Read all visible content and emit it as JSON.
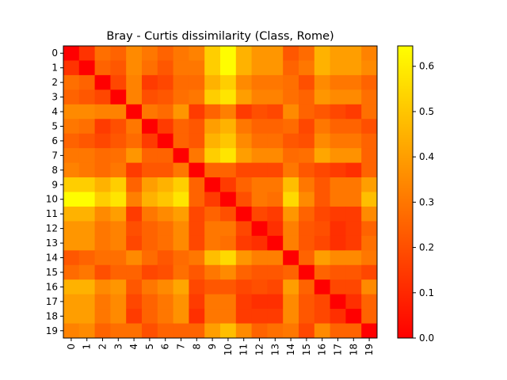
{
  "chart_data": {
    "type": "heatmap",
    "title": "Bray - Curtis dissimilarity (Class, Rome)",
    "xlabel": "",
    "ylabel": "",
    "x_labels": [
      "0",
      "1",
      "2",
      "3",
      "4",
      "5",
      "6",
      "7",
      "8",
      "9",
      "10",
      "11",
      "12",
      "13",
      "14",
      "15",
      "16",
      "17",
      "18",
      "19"
    ],
    "y_labels": [
      "0",
      "1",
      "2",
      "3",
      "4",
      "5",
      "6",
      "7",
      "8",
      "9",
      "10",
      "11",
      "12",
      "13",
      "14",
      "15",
      "16",
      "17",
      "18",
      "19"
    ],
    "colormap": "autumn",
    "colormap_colors": {
      "min": "#ff0000",
      "max": "#ffff00"
    },
    "value_range": [
      0.0,
      0.645
    ],
    "colorbar_ticks": [
      "0.0",
      "0.1",
      "0.2",
      "0.3",
      "0.4",
      "0.5",
      "0.6"
    ],
    "colorbar_tick_values": [
      0.0,
      0.1,
      0.2,
      0.3,
      0.4,
      0.5,
      0.6
    ],
    "grid": false,
    "matrix": [
      [
        0.0,
        0.13,
        0.28,
        0.25,
        0.35,
        0.3,
        0.25,
        0.3,
        0.33,
        0.52,
        0.64,
        0.45,
        0.38,
        0.38,
        0.22,
        0.27,
        0.45,
        0.4,
        0.4,
        0.33
      ],
      [
        0.13,
        0.0,
        0.25,
        0.22,
        0.35,
        0.28,
        0.22,
        0.3,
        0.3,
        0.52,
        0.64,
        0.45,
        0.38,
        0.38,
        0.25,
        0.3,
        0.45,
        0.4,
        0.4,
        0.35
      ],
      [
        0.28,
        0.25,
        0.0,
        0.18,
        0.33,
        0.15,
        0.18,
        0.27,
        0.27,
        0.45,
        0.52,
        0.35,
        0.3,
        0.3,
        0.28,
        0.2,
        0.35,
        0.3,
        0.3,
        0.25
      ],
      [
        0.25,
        0.22,
        0.18,
        0.0,
        0.33,
        0.2,
        0.22,
        0.28,
        0.3,
        0.52,
        0.58,
        0.4,
        0.33,
        0.33,
        0.28,
        0.25,
        0.38,
        0.35,
        0.35,
        0.28
      ],
      [
        0.35,
        0.35,
        0.33,
        0.33,
        0.0,
        0.3,
        0.27,
        0.38,
        0.15,
        0.25,
        0.32,
        0.15,
        0.2,
        0.18,
        0.35,
        0.25,
        0.22,
        0.18,
        0.15,
        0.28
      ],
      [
        0.3,
        0.28,
        0.15,
        0.2,
        0.3,
        0.0,
        0.15,
        0.25,
        0.22,
        0.4,
        0.45,
        0.3,
        0.25,
        0.25,
        0.27,
        0.18,
        0.3,
        0.25,
        0.25,
        0.2
      ],
      [
        0.25,
        0.22,
        0.18,
        0.22,
        0.27,
        0.15,
        0.0,
        0.25,
        0.22,
        0.45,
        0.5,
        0.35,
        0.28,
        0.28,
        0.22,
        0.2,
        0.35,
        0.3,
        0.3,
        0.25
      ],
      [
        0.3,
        0.3,
        0.27,
        0.28,
        0.38,
        0.25,
        0.25,
        0.0,
        0.3,
        0.52,
        0.58,
        0.4,
        0.35,
        0.35,
        0.27,
        0.28,
        0.42,
        0.37,
        0.37,
        0.25
      ],
      [
        0.33,
        0.3,
        0.27,
        0.3,
        0.15,
        0.22,
        0.22,
        0.3,
        0.0,
        0.25,
        0.25,
        0.18,
        0.18,
        0.18,
        0.3,
        0.22,
        0.18,
        0.15,
        0.12,
        0.25
      ],
      [
        0.52,
        0.52,
        0.45,
        0.52,
        0.25,
        0.4,
        0.45,
        0.52,
        0.25,
        0.0,
        0.15,
        0.25,
        0.3,
        0.3,
        0.48,
        0.3,
        0.22,
        0.3,
        0.3,
        0.4
      ],
      [
        0.64,
        0.64,
        0.52,
        0.58,
        0.32,
        0.45,
        0.5,
        0.58,
        0.25,
        0.15,
        0.0,
        0.2,
        0.3,
        0.28,
        0.55,
        0.35,
        0.22,
        0.3,
        0.3,
        0.48
      ],
      [
        0.45,
        0.45,
        0.35,
        0.4,
        0.15,
        0.3,
        0.35,
        0.4,
        0.18,
        0.25,
        0.2,
        0.0,
        0.18,
        0.15,
        0.38,
        0.25,
        0.18,
        0.15,
        0.15,
        0.35
      ],
      [
        0.38,
        0.38,
        0.3,
        0.33,
        0.2,
        0.25,
        0.28,
        0.35,
        0.18,
        0.3,
        0.3,
        0.18,
        0.0,
        0.12,
        0.32,
        0.22,
        0.2,
        0.12,
        0.15,
        0.25
      ],
      [
        0.38,
        0.38,
        0.3,
        0.33,
        0.18,
        0.25,
        0.28,
        0.35,
        0.18,
        0.3,
        0.28,
        0.15,
        0.12,
        0.0,
        0.32,
        0.22,
        0.18,
        0.12,
        0.15,
        0.28
      ],
      [
        0.22,
        0.25,
        0.28,
        0.28,
        0.35,
        0.27,
        0.22,
        0.27,
        0.3,
        0.48,
        0.55,
        0.38,
        0.32,
        0.32,
        0.0,
        0.25,
        0.4,
        0.35,
        0.35,
        0.3
      ],
      [
        0.27,
        0.3,
        0.2,
        0.25,
        0.25,
        0.18,
        0.2,
        0.28,
        0.22,
        0.3,
        0.35,
        0.25,
        0.22,
        0.22,
        0.25,
        0.0,
        0.25,
        0.22,
        0.22,
        0.18
      ],
      [
        0.45,
        0.45,
        0.35,
        0.38,
        0.22,
        0.3,
        0.35,
        0.42,
        0.18,
        0.22,
        0.22,
        0.18,
        0.2,
        0.18,
        0.4,
        0.25,
        0.0,
        0.18,
        0.18,
        0.35
      ],
      [
        0.4,
        0.4,
        0.3,
        0.35,
        0.18,
        0.25,
        0.3,
        0.37,
        0.15,
        0.3,
        0.3,
        0.15,
        0.12,
        0.12,
        0.35,
        0.22,
        0.18,
        0.0,
        0.12,
        0.25
      ],
      [
        0.4,
        0.4,
        0.3,
        0.35,
        0.15,
        0.25,
        0.3,
        0.37,
        0.12,
        0.3,
        0.3,
        0.15,
        0.15,
        0.15,
        0.35,
        0.22,
        0.18,
        0.12,
        0.0,
        0.25
      ],
      [
        0.33,
        0.35,
        0.25,
        0.28,
        0.28,
        0.2,
        0.25,
        0.25,
        0.25,
        0.4,
        0.48,
        0.35,
        0.25,
        0.28,
        0.3,
        0.18,
        0.35,
        0.25,
        0.25,
        0.0
      ]
    ]
  }
}
